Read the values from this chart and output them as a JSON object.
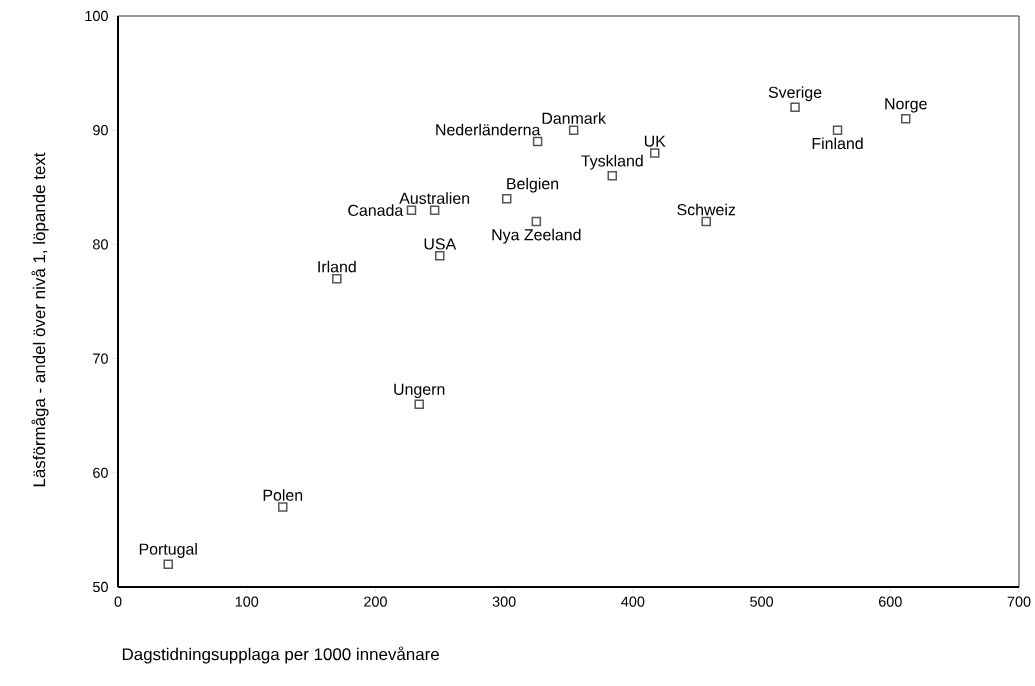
{
  "chart_data": {
    "type": "scatter",
    "xlabel": "Dagstidningsupplaga per 1000 innevånare",
    "ylabel": "Läsförmåga - andel över nivå 1, löpande text",
    "series": [
      {
        "color": "#555555",
        "x": [
          39,
          128,
          170,
          234,
          250,
          228,
          246,
          302,
          325,
          326,
          354,
          384,
          417,
          526,
          559,
          612,
          457
        ],
        "values": [
          52,
          57,
          77,
          66,
          79,
          83,
          83,
          84,
          82,
          89,
          90,
          86,
          88,
          92,
          90,
          91,
          82
        ]
      }
    ],
    "marker": "square",
    "xlim": [
      0,
      700
    ],
    "xticks": [
      0,
      100,
      200,
      300,
      400,
      500,
      600,
      700
    ],
    "ylim": [
      50,
      100
    ],
    "yticks": [
      50,
      60,
      70,
      80,
      90,
      100
    ],
    "grid": false,
    "annotations": [
      {
        "text": "Portugal",
        "x": 39,
        "y": 52
      },
      {
        "text": "Polen",
        "x": 128,
        "y": 57
      },
      {
        "text": "Irland",
        "x": 170,
        "y": 77
      },
      {
        "text": "Ungern",
        "x": 234,
        "y": 66
      },
      {
        "text": "USA",
        "x": 250,
        "y": 79
      },
      {
        "text": "Canada",
        "x": 228,
        "y": 83
      },
      {
        "text": "Australien",
        "x": 246,
        "y": 83
      },
      {
        "text": "Belgien",
        "x": 302,
        "y": 84
      },
      {
        "text": "Nya Zeeland",
        "x": 325,
        "y": 82
      },
      {
        "text": "Nederländerna",
        "x": 326,
        "y": 89
      },
      {
        "text": "Danmark",
        "x": 354,
        "y": 90
      },
      {
        "text": "Tyskland",
        "x": 384,
        "y": 86
      },
      {
        "text": "UK",
        "x": 417,
        "y": 88
      },
      {
        "text": "Sverige",
        "x": 526,
        "y": 92
      },
      {
        "text": "Finland",
        "x": 559,
        "y": 90
      },
      {
        "text": "Norge",
        "x": 612,
        "y": 91
      },
      {
        "text": "Schweiz",
        "x": 457,
        "y": 82
      }
    ]
  }
}
